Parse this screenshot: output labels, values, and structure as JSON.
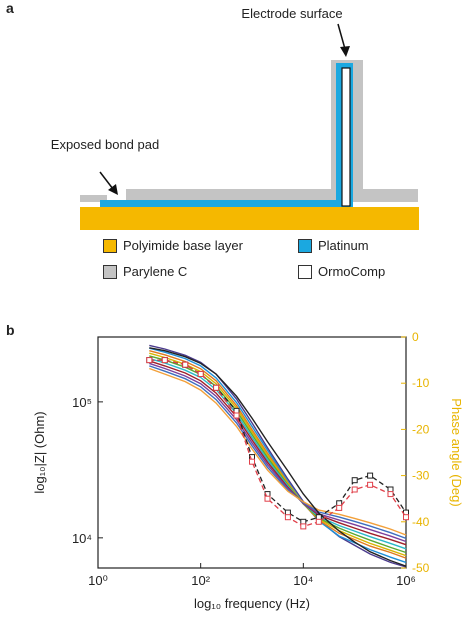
{
  "panel_a": {
    "label": "a",
    "electrode_label": "Electrode surface",
    "bondpad_label": "Exposed bond pad",
    "colors": {
      "polyimide": "#f5b800",
      "platinum": "#1ba8e0",
      "parylene": "#c4c4c4",
      "ormocomp": "#ffffff"
    },
    "legend": [
      {
        "label": "Polyimide base layer",
        "color": "#f5b800"
      },
      {
        "label": "Platinum",
        "color": "#1ba8e0"
      },
      {
        "label": "Parylene C",
        "color": "#c4c4c4"
      },
      {
        "label": "OrmoComp",
        "color": "#ffffff"
      }
    ]
  },
  "panel_b": {
    "label": "b"
  },
  "chart_data": {
    "type": "line",
    "xlabel": "log₁₀ frequency (Hz)",
    "ylabel": "log₁₀|Z| (Ohm)",
    "y2label": "Phase angle (Deg)",
    "xscale": "log",
    "xlim": [
      1,
      1000000
    ],
    "xticks": [
      {
        "value": 1,
        "label": "10⁰"
      },
      {
        "value": 100,
        "label": "10²"
      },
      {
        "value": 10000,
        "label": "10⁴"
      },
      {
        "value": 1000000,
        "label": "10⁶"
      }
    ],
    "yscale": "log",
    "ylim": [
      6000,
      300000
    ],
    "yticks": [
      {
        "value": 10000,
        "label": "10⁴"
      },
      {
        "value": 100000,
        "label": "10⁵"
      }
    ],
    "y2lim": [
      -50,
      0
    ],
    "y2ticks": [
      0,
      -10,
      -20,
      -30,
      -40,
      -50
    ],
    "y2color": "#e8b400",
    "x": [
      10,
      20,
      50,
      100,
      200,
      500,
      1000,
      2000,
      5000,
      10000,
      20000,
      50000,
      100000,
      200000,
      500000,
      1000000
    ],
    "impedance_series": [
      {
        "color": "#4a3a8c",
        "values": [
          260000,
          245000,
          220000,
          195000,
          160000,
          105000,
          70000,
          46000,
          27000,
          18500,
          13500,
          10200,
          8800,
          7600,
          6600,
          6100
        ]
      },
      {
        "color": "#1f8fd6",
        "values": [
          248000,
          232000,
          208000,
          184000,
          150000,
          99000,
          66000,
          44000,
          26000,
          18000,
          13300,
          10300,
          9200,
          8200,
          7200,
          6600
        ]
      },
      {
        "color": "#e07a1f",
        "values": [
          238000,
          222000,
          198000,
          175000,
          143000,
          94000,
          62500,
          42000,
          25500,
          17800,
          13500,
          10800,
          9700,
          8700,
          7800,
          7100
        ]
      },
      {
        "color": "#d9b400",
        "values": [
          228000,
          212000,
          189000,
          167000,
          136000,
          90000,
          60000,
          40500,
          25000,
          17800,
          13800,
          11300,
          10100,
          9100,
          8100,
          7400
        ]
      },
      {
        "color": "#5aa832",
        "values": [
          218000,
          203000,
          180000,
          159000,
          130000,
          86000,
          57500,
          39000,
          24500,
          17800,
          14000,
          11800,
          10600,
          9600,
          8500,
          7800
        ]
      },
      {
        "color": "#2bb8c9",
        "values": [
          208000,
          193000,
          171000,
          151000,
          123000,
          82000,
          55000,
          37500,
          24000,
          17800,
          14300,
          12300,
          11200,
          10200,
          9100,
          8300
        ]
      },
      {
        "color": "#a0202a",
        "values": [
          200000,
          184000,
          163000,
          143000,
          116000,
          78000,
          52500,
          36000,
          23500,
          17900,
          14700,
          12900,
          11800,
          10800,
          9700,
          8900
        ]
      },
      {
        "color": "#7b3f9c",
        "values": [
          192000,
          176000,
          155000,
          136000,
          110000,
          74000,
          50000,
          34500,
          23000,
          18000,
          15000,
          13500,
          12500,
          11500,
          10300,
          9400
        ]
      },
      {
        "color": "#3d6fbf",
        "values": [
          184000,
          168000,
          148000,
          129000,
          104000,
          70000,
          47500,
          33000,
          22500,
          18200,
          15500,
          14200,
          13200,
          12200,
          10900,
          9900
        ]
      },
      {
        "color": "#f2a03a",
        "values": [
          176000,
          160000,
          141000,
          122000,
          98000,
          66000,
          45000,
          31500,
          22000,
          18400,
          16000,
          14900,
          13900,
          12900,
          11600,
          10500
        ]
      },
      {
        "color": "#222222",
        "values": [
          250000,
          238000,
          215000,
          192000,
          160000,
          110000,
          76000,
          51000,
          31000,
          21000,
          15200,
          11200,
          9300,
          7900,
          6800,
          6200
        ]
      }
    ],
    "phase_series": [
      {
        "color": "#222222",
        "marker": "square",
        "values": [
          -5,
          -5,
          -6,
          -8,
          -11,
          -16,
          -26,
          -34,
          -38,
          -40,
          -39,
          -36,
          -31,
          -30,
          -33,
          -38
        ]
      },
      {
        "color": "#e0404a",
        "marker": "square",
        "values": [
          -5,
          -5,
          -6,
          -8,
          -11,
          -17,
          -27,
          -35,
          -39,
          -41,
          -40,
          -37,
          -33,
          -32,
          -34,
          -39
        ]
      }
    ]
  }
}
